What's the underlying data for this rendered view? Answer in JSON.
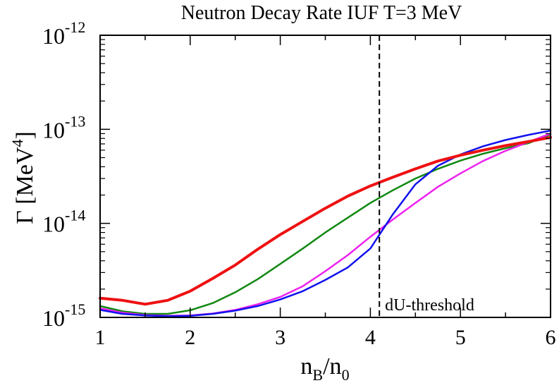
{
  "chart_data": {
    "type": "line",
    "title": "Neutron Decay Rate  IUF  T=3 MeV",
    "xlabel": {
      "base": "n",
      "sub1": "B",
      "slash": "/n",
      "sub2": "0"
    },
    "ylabel": {
      "text": "Γ [MeV",
      "sup": "4",
      "close": "]"
    },
    "x_range": [
      1,
      6
    ],
    "y_log_range": [
      -15,
      -12
    ],
    "y_scale": "log",
    "x_ticks": [
      {
        "value": 1,
        "label": "1"
      },
      {
        "value": 2,
        "label": "2"
      },
      {
        "value": 3,
        "label": "3"
      },
      {
        "value": 4,
        "label": "4"
      },
      {
        "value": 5,
        "label": "5"
      },
      {
        "value": 6,
        "label": "6"
      }
    ],
    "y_ticks": [
      {
        "exp": -15,
        "base": "10",
        "sup": "-15"
      },
      {
        "exp": -14,
        "base": "10",
        "sup": "-14"
      },
      {
        "exp": -13,
        "base": "10",
        "sup": "-13"
      },
      {
        "exp": -12,
        "base": "10",
        "sup": "-12"
      }
    ],
    "threshold": {
      "x": 4.1,
      "label": "dU-threshold"
    },
    "x": [
      1.0,
      1.25,
      1.5,
      1.75,
      2.0,
      2.25,
      2.5,
      2.75,
      3.0,
      3.25,
      3.5,
      3.75,
      4.0,
      4.25,
      4.5,
      4.75,
      5.0,
      5.25,
      5.5,
      5.75,
      6.0
    ],
    "series": [
      {
        "name": "red",
        "color": "#ee1111",
        "width": 4,
        "values": [
          1.6e-15,
          1.52e-15,
          1.38e-15,
          1.52e-15,
          1.9e-15,
          2.6e-15,
          3.6e-15,
          5.3e-15,
          7.6e-15,
          1.05e-14,
          1.45e-14,
          1.95e-14,
          2.5e-14,
          3.1e-14,
          3.8e-14,
          4.6e-14,
          5.3e-14,
          6e-14,
          6.7e-14,
          7.4e-14,
          8.2e-14
        ]
      },
      {
        "name": "green",
        "color": "#118811",
        "width": 2.5,
        "values": [
          1.32e-15,
          1.16e-15,
          1.09e-15,
          1.09e-15,
          1.19e-15,
          1.42e-15,
          1.85e-15,
          2.55e-15,
          3.7e-15,
          5.4e-15,
          8e-15,
          1.15e-14,
          1.65e-14,
          2.25e-14,
          3e-14,
          3.8e-14,
          4.65e-14,
          5.5e-14,
          6.3e-14,
          7.1e-14,
          8.8e-14
        ]
      },
      {
        "name": "magenta",
        "color": "#ee22ee",
        "width": 2.5,
        "values": [
          1.25e-15,
          1.12e-15,
          1.06e-15,
          1.04e-15,
          1.05e-15,
          1.1e-15,
          1.2e-15,
          1.38e-15,
          1.65e-15,
          2.15e-15,
          3.1e-15,
          4.6e-15,
          7.2e-15,
          1.1e-14,
          1.65e-14,
          2.45e-14,
          3.4e-14,
          4.6e-14,
          5.9e-14,
          7.3e-14,
          9e-14
        ]
      },
      {
        "name": "blue",
        "color": "#1111ee",
        "width": 2.5,
        "values": [
          1.2e-15,
          1.09e-15,
          1.05e-15,
          1.03e-15,
          1.04e-15,
          1.09e-15,
          1.18e-15,
          1.32e-15,
          1.55e-15,
          1.9e-15,
          2.5e-15,
          3.4e-15,
          5.4e-15,
          1.25e-14,
          2.6e-14,
          4.1e-14,
          5.4e-14,
          6.6e-14,
          7.7e-14,
          8.7e-14,
          9.7e-14
        ]
      }
    ]
  }
}
